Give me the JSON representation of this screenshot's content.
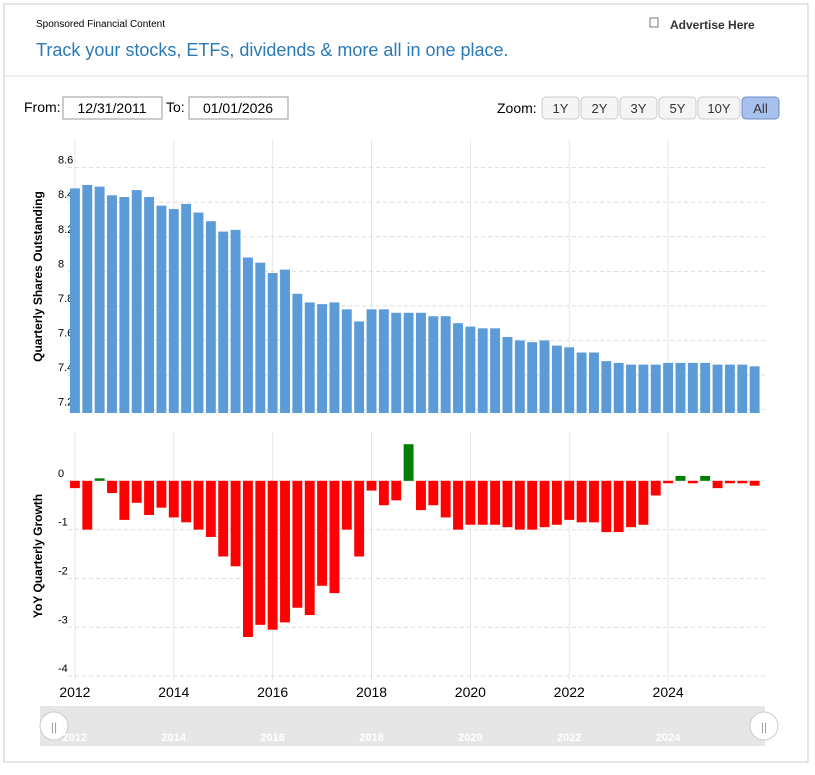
{
  "header": {
    "sponsored": "Sponsored Financial Content",
    "advertise": "Advertise Here",
    "tagline": "Track your stocks, ETFs, dividends & more all in one place."
  },
  "controls": {
    "from_label": "From:",
    "from_date": "12/31/2011",
    "to_label": "To:",
    "to_date": "01/01/2026",
    "zoom_label": "Zoom:",
    "zoom_buttons": [
      "1Y",
      "2Y",
      "3Y",
      "5Y",
      "10Y",
      "All"
    ],
    "zoom_active": 5
  },
  "chart_data": [
    {
      "type": "bar",
      "y_label": "Quarterly Shares Outstanding",
      "color": "#5b9bd8",
      "x": [
        2012,
        2012.25,
        2012.5,
        2012.75,
        2013,
        2013.25,
        2013.5,
        2013.75,
        2014,
        2014.25,
        2014.5,
        2014.75,
        2015,
        2015.25,
        2015.5,
        2015.75,
        2016,
        2016.25,
        2016.5,
        2016.75,
        2017,
        2017.25,
        2017.5,
        2017.75,
        2018,
        2018.25,
        2018.5,
        2018.75,
        2019,
        2019.25,
        2019.5,
        2019.75,
        2020,
        2020.25,
        2020.5,
        2020.75,
        2021,
        2021.25,
        2021.5,
        2021.75,
        2022,
        2022.25,
        2022.5,
        2022.75,
        2023,
        2023.25,
        2023.5,
        2023.75,
        2024,
        2024.25,
        2024.5,
        2024.75,
        2025,
        2025.25,
        2025.5,
        2025.75
      ],
      "values": [
        8.48,
        8.5,
        8.49,
        8.44,
        8.43,
        8.47,
        8.43,
        8.38,
        8.36,
        8.39,
        8.34,
        8.29,
        8.23,
        8.24,
        8.08,
        8.05,
        7.99,
        8.01,
        7.87,
        7.82,
        7.81,
        7.82,
        7.78,
        7.71,
        7.78,
        7.78,
        7.76,
        7.76,
        7.76,
        7.74,
        7.74,
        7.7,
        7.68,
        7.67,
        7.67,
        7.62,
        7.6,
        7.59,
        7.6,
        7.57,
        7.56,
        7.53,
        7.53,
        7.48,
        7.47,
        7.46,
        7.46,
        7.46,
        7.47,
        7.47,
        7.47,
        7.47,
        7.46,
        7.46,
        7.46,
        7.45
      ],
      "xlim": [
        2011.86,
        2025.96
      ],
      "xticks": [
        2012,
        2014,
        2016,
        2018,
        2020,
        2022,
        2024
      ],
      "ylim": [
        7.18,
        8.76
      ],
      "yticks": [
        7.2,
        7.4,
        7.6,
        7.8,
        8.0,
        8.2,
        8.4,
        8.6
      ],
      "grid": true
    },
    {
      "type": "bar",
      "y_label": "YoY Quarterly Growth",
      "positive_color": "#008000",
      "negative_color": "#ff0000",
      "x": [
        2012,
        2012.25,
        2012.5,
        2012.75,
        2013,
        2013.25,
        2013.5,
        2013.75,
        2014,
        2014.25,
        2014.5,
        2014.75,
        2015,
        2015.25,
        2015.5,
        2015.75,
        2016,
        2016.25,
        2016.5,
        2016.75,
        2017,
        2017.25,
        2017.5,
        2017.75,
        2018,
        2018.25,
        2018.5,
        2018.75,
        2019,
        2019.25,
        2019.5,
        2019.75,
        2020,
        2020.25,
        2020.5,
        2020.75,
        2021,
        2021.25,
        2021.5,
        2021.75,
        2022,
        2022.25,
        2022.5,
        2022.75,
        2023,
        2023.25,
        2023.5,
        2023.75,
        2024,
        2024.25,
        2024.5,
        2024.75,
        2025,
        2025.25,
        2025.5,
        2025.75
      ],
      "values": [
        -0.15,
        -1.0,
        0.05,
        -0.25,
        -0.8,
        -0.45,
        -0.7,
        -0.55,
        -0.75,
        -0.85,
        -1.0,
        -1.15,
        -1.55,
        -1.75,
        -3.2,
        -2.95,
        -3.05,
        -2.9,
        -2.6,
        -2.75,
        -2.15,
        -2.3,
        -1.0,
        -1.55,
        -0.2,
        -0.5,
        -0.4,
        0.75,
        -0.6,
        -0.5,
        -0.75,
        -1.0,
        -0.9,
        -0.9,
        -0.9,
        -0.95,
        -1.0,
        -1.0,
        -0.95,
        -0.9,
        -0.8,
        -0.85,
        -0.85,
        -1.05,
        -1.05,
        -0.95,
        -0.9,
        -0.3,
        -0.05,
        0.1,
        -0.05,
        0.1,
        -0.15,
        -0.05,
        -0.05,
        -0.1
      ],
      "xlim": [
        2011.86,
        2025.96
      ],
      "xticks": [
        2012,
        2014,
        2016,
        2018,
        2020,
        2022,
        2024
      ],
      "ylim": [
        -4.08,
        1
      ],
      "yticks": [
        -4,
        -3,
        -2,
        -1,
        0
      ],
      "grid": true
    }
  ]
}
